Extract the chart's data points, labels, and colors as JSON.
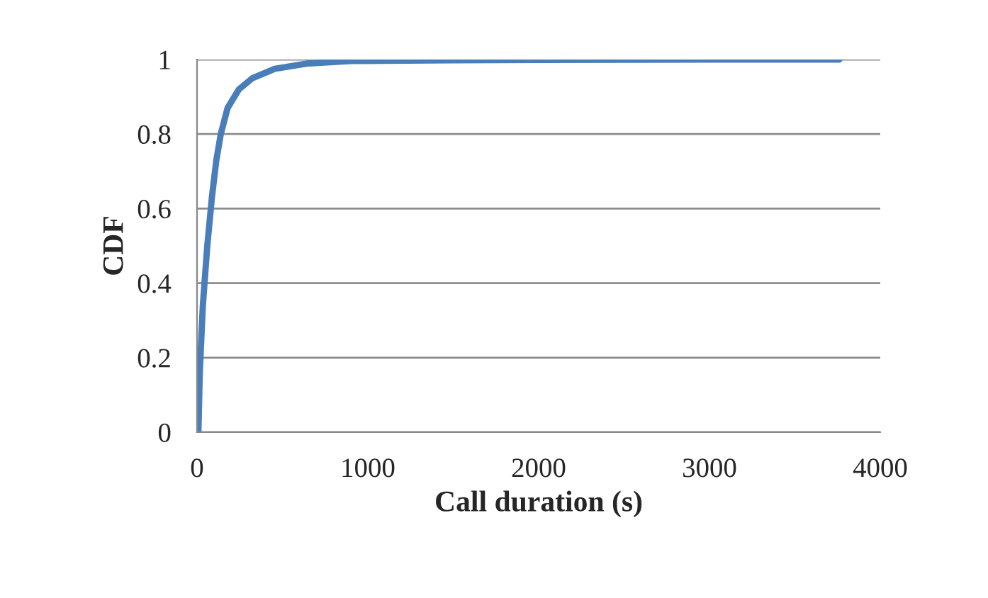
{
  "chart_data": {
    "type": "line",
    "xlabel": "Call duration (s)",
    "ylabel": "CDF",
    "series": [
      {
        "color": "#4a7ebb",
        "x": [
          0,
          8,
          16,
          34,
          60,
          87,
          113,
          139,
          179,
          245,
          324,
          455,
          639,
          902,
          1500,
          2000,
          3000,
          3760
        ],
        "values": [
          0,
          0,
          0.16,
          0.34,
          0.5,
          0.63,
          0.73,
          0.8,
          0.87,
          0.92,
          0.95,
          0.975,
          0.989,
          0.996,
          0.998,
          0.999,
          1,
          1
        ]
      }
    ],
    "xlim": [
      0,
      4000
    ],
    "xticks": [
      0,
      1000,
      2000,
      3000,
      4000
    ],
    "ylim": [
      0,
      1
    ],
    "yticks": [
      0,
      0.2,
      0.4,
      0.6,
      0.8,
      1
    ],
    "grid": "y",
    "marker": "none",
    "line_style": "solid"
  }
}
